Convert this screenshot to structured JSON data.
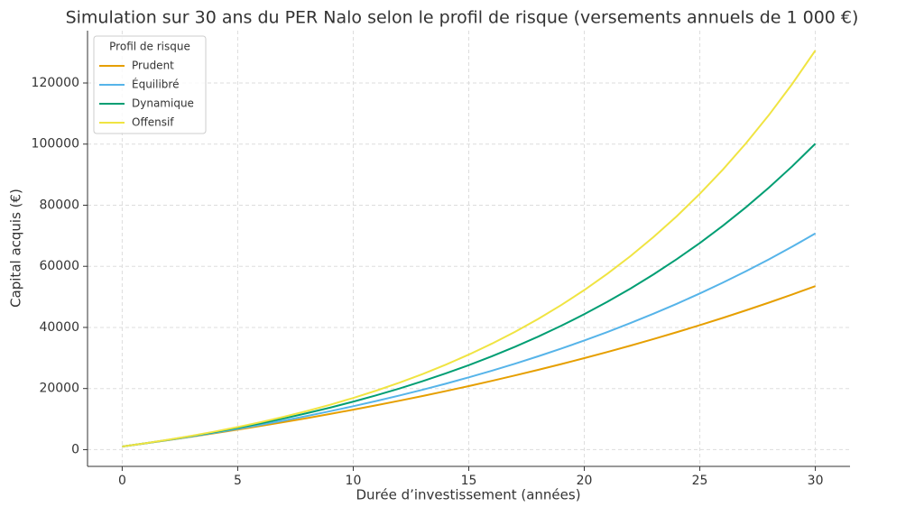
{
  "chart_data": {
    "type": "line",
    "title": "Simulation sur 30 ans du PER Nalo selon le profil de risque (versements annuels de 1 000 €)",
    "x_label": "Durée d’investissement (années)",
    "y_label": "Capital acquis (€)",
    "legend_title": "Profil de risque",
    "legend_position": "upper left",
    "grid": true,
    "x": [
      0,
      1,
      2,
      3,
      4,
      5,
      6,
      7,
      8,
      9,
      10,
      11,
      12,
      13,
      14,
      15,
      16,
      17,
      18,
      19,
      20,
      21,
      22,
      23,
      24,
      25,
      26,
      27,
      28,
      29,
      30
    ],
    "xlim": [
      -1.5,
      31.5
    ],
    "xticks": [
      0,
      5,
      10,
      15,
      20,
      25,
      30
    ],
    "ylim": [
      -5482,
      137127
    ],
    "yticks": [
      0,
      20000,
      40000,
      60000,
      80000,
      100000,
      120000
    ],
    "series": [
      {
        "name": "Prudent",
        "color": "#E69F00",
        "values": [
          1000,
          2034,
          3103,
          4209,
          5352,
          6534,
          7756,
          9020,
          10326,
          11677,
          13074,
          14519,
          16013,
          17557,
          19154,
          20805,
          22513,
          24278,
          26103,
          27991,
          29943,
          31961,
          34047,
          36205,
          38436,
          40743,
          43128,
          45594,
          48145,
          50781,
          53508
        ]
      },
      {
        "name": "Équilibré",
        "color": "#56B4E9",
        "values": [
          1000,
          2050,
          3153,
          4310,
          5526,
          6802,
          8142,
          9549,
          11027,
          12578,
          14207,
          15917,
          17713,
          19599,
          21579,
          23657,
          25840,
          28132,
          30539,
          33066,
          35719,
          38505,
          41430,
          44502,
          47727,
          51113,
          54669,
          58403,
          62323,
          66439,
          70761
        ]
      },
      {
        "name": "Dynamique",
        "color": "#009E73",
        "values": [
          1000,
          2069,
          3212,
          4433,
          5739,
          7135,
          8628,
          10223,
          11928,
          13751,
          15700,
          17784,
          20011,
          22391,
          24936,
          27657,
          30551,
          33659,
          36981,
          40533,
          44330,
          48388,
          52727,
          57365,
          62324,
          67624,
          73290,
          79347,
          85822,
          92744,
          100143
        ]
      },
      {
        "name": "Offensif",
        "color": "#F0E442",
        "values": [
          1000,
          2083,
          3256,
          4526,
          5902,
          7392,
          9005,
          10753,
          12645,
          14695,
          16914,
          19318,
          21922,
          24741,
          27795,
          31102,
          34683,
          38562,
          42762,
          47311,
          52238,
          57574,
          63353,
          69611,
          76389,
          83729,
          91679,
          100288,
          109612,
          119710,
          130645
        ]
      }
    ]
  }
}
